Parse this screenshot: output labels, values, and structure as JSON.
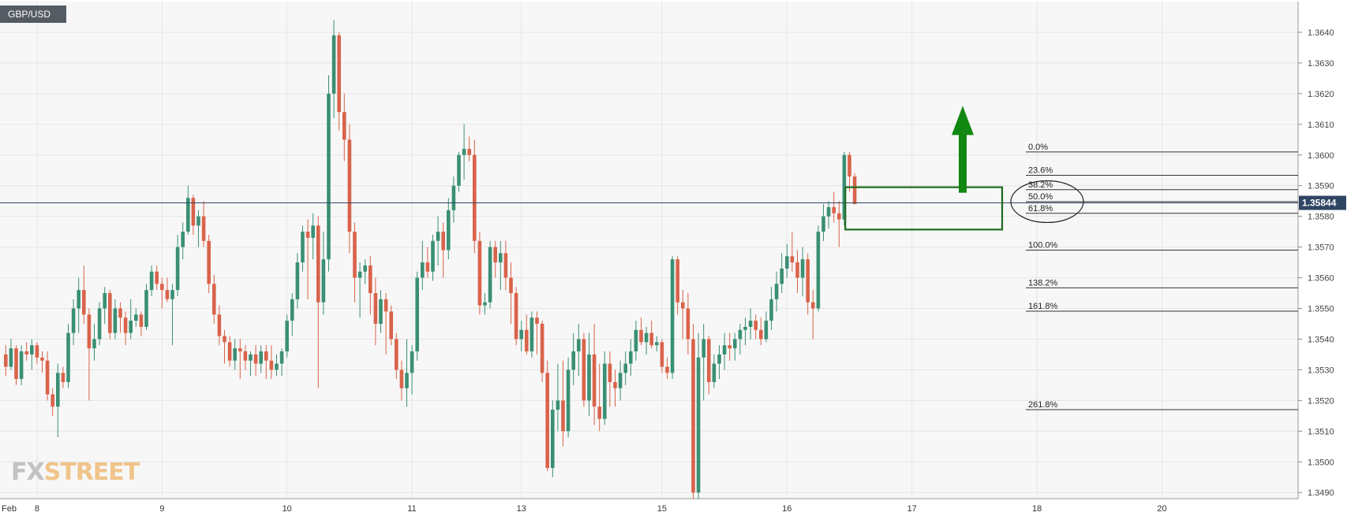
{
  "ticker": "GBP/USD",
  "brand": {
    "part1": "FX",
    "part2": "STREET"
  },
  "colors": {
    "up": "#3a8f74",
    "down": "#d9634a",
    "grid": "#e6e6e6",
    "fib": "#333333",
    "price_line": "#2f4563",
    "highlight": "#1f6b1f",
    "arrow": "#118811",
    "bg": "#f7f7f7"
  },
  "chart_data": {
    "type": "candlestick",
    "symbol": "GBP/USD",
    "y_ticks": [
      "1.3640",
      "1.3630",
      "1.3620",
      "1.3610",
      "1.3600",
      "1.3590",
      "1.3580",
      "1.3570",
      "1.3560",
      "1.3550",
      "1.3540",
      "1.3530",
      "1.3520",
      "1.3510",
      "1.3500",
      "1.3490"
    ],
    "ylim": [
      1.3488,
      1.365
    ],
    "x_ticks": [
      {
        "label": "Feb",
        "bar": 0
      },
      {
        "label": "8",
        "bar": 6
      },
      {
        "label": "9",
        "bar": 30
      },
      {
        "label": "10",
        "bar": 54
      },
      {
        "label": "11",
        "bar": 78
      },
      {
        "label": "13",
        "bar": 99
      },
      {
        "label": "15",
        "bar": 126
      },
      {
        "label": "16",
        "bar": 150
      },
      {
        "label": "17",
        "bar": 174
      },
      {
        "label": "18",
        "bar": 198
      },
      {
        "label": "20",
        "bar": 222
      }
    ],
    "current_price": {
      "label": "1.35844",
      "value": 1.35844
    },
    "fibonacci": [
      {
        "label": "0.0%",
        "value": 1.3601
      },
      {
        "label": "23.6%",
        "value": 1.35934
      },
      {
        "label": "38.2%",
        "value": 1.35887
      },
      {
        "label": "50.0%",
        "value": 1.35848
      },
      {
        "label": "61.8%",
        "value": 1.3581
      },
      {
        "label": "100.0%",
        "value": 1.3569
      },
      {
        "label": "138.2%",
        "value": 1.35567
      },
      {
        "label": "161.8%",
        "value": 1.35491
      },
      {
        "label": "261.8%",
        "value": 1.3517
      }
    ],
    "candles": [
      [
        1.3535,
        1.3538,
        1.3528,
        1.3531
      ],
      [
        1.3531,
        1.354,
        1.353,
        1.3537
      ],
      [
        1.3537,
        1.3538,
        1.3525,
        1.3527
      ],
      [
        1.3527,
        1.3538,
        1.3525,
        1.3536
      ],
      [
        1.3536,
        1.3539,
        1.3533,
        1.3535
      ],
      [
        1.3535,
        1.354,
        1.353,
        1.3538
      ],
      [
        1.3538,
        1.3539,
        1.3532,
        1.3534
      ],
      [
        1.3534,
        1.3536,
        1.3529,
        1.3533
      ],
      [
        1.3533,
        1.3536,
        1.352,
        1.3522
      ],
      [
        1.3522,
        1.3524,
        1.3515,
        1.3518
      ],
      [
        1.3518,
        1.3532,
        1.3508,
        1.3529
      ],
      [
        1.3529,
        1.3531,
        1.3524,
        1.3526
      ],
      [
        1.3526,
        1.3545,
        1.3524,
        1.3542
      ],
      [
        1.3542,
        1.3553,
        1.3538,
        1.355
      ],
      [
        1.355,
        1.356,
        1.3542,
        1.3556
      ],
      [
        1.3556,
        1.3564,
        1.3545,
        1.3548
      ],
      [
        1.3548,
        1.355,
        1.352,
        1.3537
      ],
      [
        1.3537,
        1.3545,
        1.3533,
        1.354
      ],
      [
        1.354,
        1.3552,
        1.3538,
        1.355
      ],
      [
        1.355,
        1.3557,
        1.3545,
        1.3555
      ],
      [
        1.3555,
        1.3556,
        1.354,
        1.3542
      ],
      [
        1.3542,
        1.3553,
        1.354,
        1.355
      ],
      [
        1.355,
        1.3552,
        1.3542,
        1.3547
      ],
      [
        1.3547,
        1.3549,
        1.3538,
        1.3542
      ],
      [
        1.3542,
        1.3553,
        1.354,
        1.3546
      ],
      [
        1.3546,
        1.355,
        1.3544,
        1.3548
      ],
      [
        1.3548,
        1.3549,
        1.3541,
        1.3544
      ],
      [
        1.3544,
        1.3558,
        1.3543,
        1.3556
      ],
      [
        1.3556,
        1.3564,
        1.3554,
        1.3562
      ],
      [
        1.3562,
        1.3564,
        1.3556,
        1.3558
      ],
      [
        1.3558,
        1.356,
        1.355,
        1.3556
      ],
      [
        1.3556,
        1.356,
        1.3552,
        1.3553
      ],
      [
        1.3553,
        1.3558,
        1.3538,
        1.3556
      ],
      [
        1.3556,
        1.3574,
        1.3554,
        1.357
      ],
      [
        1.357,
        1.3578,
        1.3566,
        1.3575
      ],
      [
        1.3575,
        1.359,
        1.3574,
        1.3586
      ],
      [
        1.3586,
        1.3587,
        1.3574,
        1.3577
      ],
      [
        1.3577,
        1.3582,
        1.357,
        1.358
      ],
      [
        1.358,
        1.3585,
        1.357,
        1.3572
      ],
      [
        1.3572,
        1.3574,
        1.3555,
        1.3558
      ],
      [
        1.3558,
        1.3561,
        1.3545,
        1.3548
      ],
      [
        1.3548,
        1.3551,
        1.3538,
        1.3541
      ],
      [
        1.3541,
        1.3543,
        1.3532,
        1.3539
      ],
      [
        1.3539,
        1.3541,
        1.3531,
        1.3533
      ],
      [
        1.3533,
        1.354,
        1.353,
        1.3537
      ],
      [
        1.3537,
        1.354,
        1.3527,
        1.3536
      ],
      [
        1.3536,
        1.3538,
        1.353,
        1.3533
      ],
      [
        1.3533,
        1.3536,
        1.3528,
        1.3535
      ],
      [
        1.3535,
        1.3538,
        1.3528,
        1.3532
      ],
      [
        1.3532,
        1.3538,
        1.3529,
        1.3536
      ],
      [
        1.3536,
        1.3538,
        1.3527,
        1.3533
      ],
      [
        1.3533,
        1.3538,
        1.3527,
        1.353
      ],
      [
        1.353,
        1.3535,
        1.3528,
        1.3532
      ],
      [
        1.3532,
        1.3537,
        1.3528,
        1.3536
      ],
      [
        1.3536,
        1.3548,
        1.3534,
        1.3546
      ],
      [
        1.3546,
        1.3555,
        1.3541,
        1.3553
      ],
      [
        1.3553,
        1.3568,
        1.355,
        1.3565
      ],
      [
        1.3565,
        1.3577,
        1.3562,
        1.3575
      ],
      [
        1.3575,
        1.3579,
        1.3553,
        1.3573
      ],
      [
        1.3573,
        1.3581,
        1.3566,
        1.3577
      ],
      [
        1.3577,
        1.358,
        1.3524,
        1.3552
      ],
      [
        1.3552,
        1.3575,
        1.3548,
        1.3566
      ],
      [
        1.3566,
        1.3626,
        1.3562,
        1.362
      ],
      [
        1.362,
        1.3644,
        1.3612,
        1.3639
      ],
      [
        1.3639,
        1.364,
        1.3608,
        1.3614
      ],
      [
        1.3614,
        1.362,
        1.3598,
        1.3605
      ],
      [
        1.3605,
        1.361,
        1.3568,
        1.3575
      ],
      [
        1.3575,
        1.3578,
        1.3552,
        1.356
      ],
      [
        1.356,
        1.3565,
        1.3547,
        1.3562
      ],
      [
        1.3562,
        1.3566,
        1.3558,
        1.3564
      ],
      [
        1.3564,
        1.3567,
        1.3548,
        1.3555
      ],
      [
        1.3555,
        1.356,
        1.3538,
        1.3545
      ],
      [
        1.3545,
        1.3556,
        1.3542,
        1.3553
      ],
      [
        1.3553,
        1.3555,
        1.3535,
        1.3549
      ],
      [
        1.3549,
        1.3551,
        1.3538,
        1.354
      ],
      [
        1.354,
        1.3542,
        1.3527,
        1.353
      ],
      [
        1.353,
        1.3533,
        1.352,
        1.3524
      ],
      [
        1.3524,
        1.354,
        1.3518,
        1.3529
      ],
      [
        1.3529,
        1.3538,
        1.3522,
        1.3536
      ],
      [
        1.3536,
        1.3562,
        1.3533,
        1.356
      ],
      [
        1.356,
        1.3572,
        1.3556,
        1.3565
      ],
      [
        1.3565,
        1.357,
        1.356,
        1.3562
      ],
      [
        1.3562,
        1.3574,
        1.3559,
        1.3572
      ],
      [
        1.3572,
        1.358,
        1.3564,
        1.3575
      ],
      [
        1.3575,
        1.3578,
        1.356,
        1.3569
      ],
      [
        1.3569,
        1.3586,
        1.3566,
        1.3582
      ],
      [
        1.3582,
        1.3593,
        1.3578,
        1.359
      ],
      [
        1.359,
        1.3601,
        1.3588,
        1.36
      ],
      [
        1.36,
        1.361,
        1.3592,
        1.3602
      ],
      [
        1.3602,
        1.3606,
        1.3598,
        1.36
      ],
      [
        1.36,
        1.3605,
        1.3568,
        1.3572
      ],
      [
        1.3572,
        1.3575,
        1.3548,
        1.3551
      ],
      [
        1.3551,
        1.3555,
        1.3548,
        1.3552
      ],
      [
        1.3552,
        1.3572,
        1.355,
        1.357
      ],
      [
        1.357,
        1.3572,
        1.356,
        1.3565
      ],
      [
        1.3565,
        1.3572,
        1.3556,
        1.3568
      ],
      [
        1.3568,
        1.3572,
        1.3556,
        1.356
      ],
      [
        1.356,
        1.3565,
        1.3545,
        1.3555
      ],
      [
        1.3555,
        1.3557,
        1.3538,
        1.354
      ],
      [
        1.354,
        1.3546,
        1.3536,
        1.3543
      ],
      [
        1.3543,
        1.3548,
        1.3535,
        1.3536
      ],
      [
        1.3536,
        1.3549,
        1.3534,
        1.3547
      ],
      [
        1.3547,
        1.3549,
        1.3535,
        1.3545
      ],
      [
        1.3545,
        1.3546,
        1.3526,
        1.3529
      ],
      [
        1.3529,
        1.3533,
        1.3497,
        1.3498
      ],
      [
        1.3498,
        1.352,
        1.3495,
        1.3517
      ],
      [
        1.3517,
        1.3532,
        1.351,
        1.352
      ],
      [
        1.352,
        1.3533,
        1.3505,
        1.351
      ],
      [
        1.351,
        1.3534,
        1.3508,
        1.353
      ],
      [
        1.353,
        1.3542,
        1.3525,
        1.3536
      ],
      [
        1.3536,
        1.3545,
        1.3528,
        1.354
      ],
      [
        1.354,
        1.3542,
        1.3518,
        1.352
      ],
      [
        1.352,
        1.3542,
        1.3515,
        1.3535
      ],
      [
        1.3535,
        1.3545,
        1.3512,
        1.3518
      ],
      [
        1.3518,
        1.3532,
        1.351,
        1.3514
      ],
      [
        1.3514,
        1.3536,
        1.3512,
        1.3532
      ],
      [
        1.3532,
        1.3536,
        1.3518,
        1.3526
      ],
      [
        1.3526,
        1.353,
        1.3518,
        1.3524
      ],
      [
        1.3524,
        1.3533,
        1.352,
        1.3529
      ],
      [
        1.3529,
        1.3536,
        1.3525,
        1.3532
      ],
      [
        1.3532,
        1.354,
        1.3528,
        1.3536
      ],
      [
        1.3536,
        1.3546,
        1.3533,
        1.3543
      ],
      [
        1.3543,
        1.3547,
        1.3538,
        1.3539
      ],
      [
        1.3539,
        1.3544,
        1.3535,
        1.3542
      ],
      [
        1.3542,
        1.3546,
        1.3537,
        1.3538
      ],
      [
        1.3538,
        1.3541,
        1.3536,
        1.3539
      ],
      [
        1.3539,
        1.354,
        1.3529,
        1.3531
      ],
      [
        1.3531,
        1.3534,
        1.3527,
        1.3529
      ],
      [
        1.3529,
        1.3567,
        1.3527,
        1.3566
      ],
      [
        1.3566,
        1.3567,
        1.3548,
        1.3552
      ],
      [
        1.3552,
        1.3556,
        1.354,
        1.355
      ],
      [
        1.355,
        1.3555,
        1.3535,
        1.354
      ],
      [
        1.354,
        1.3545,
        1.3488,
        1.349
      ],
      [
        1.349,
        1.3542,
        1.3488,
        1.3534
      ],
      [
        1.3534,
        1.3545,
        1.352,
        1.354
      ],
      [
        1.354,
        1.3541,
        1.3522,
        1.3526
      ],
      [
        1.3526,
        1.3535,
        1.3524,
        1.3532
      ],
      [
        1.3532,
        1.3538,
        1.3527,
        1.3535
      ],
      [
        1.3535,
        1.3542,
        1.353,
        1.3538
      ],
      [
        1.3538,
        1.3542,
        1.3533,
        1.3537
      ],
      [
        1.3537,
        1.3542,
        1.3533,
        1.354
      ],
      [
        1.354,
        1.3545,
        1.3535,
        1.3543
      ],
      [
        1.3543,
        1.3547,
        1.3538,
        1.3544
      ],
      [
        1.3544,
        1.355,
        1.354,
        1.3546
      ],
      [
        1.3546,
        1.3548,
        1.354,
        1.3543
      ],
      [
        1.3543,
        1.3547,
        1.3538,
        1.354
      ],
      [
        1.354,
        1.3549,
        1.3539,
        1.3546
      ],
      [
        1.3546,
        1.3557,
        1.3543,
        1.3553
      ],
      [
        1.3553,
        1.3562,
        1.3549,
        1.3558
      ],
      [
        1.3558,
        1.3568,
        1.3555,
        1.3563
      ],
      [
        1.3563,
        1.3571,
        1.356,
        1.3567
      ],
      [
        1.3567,
        1.3575,
        1.3562,
        1.3565
      ],
      [
        1.3565,
        1.3569,
        1.3555,
        1.356
      ],
      [
        1.356,
        1.357,
        1.3554,
        1.3566
      ],
      [
        1.3566,
        1.3568,
        1.3548,
        1.3552
      ],
      [
        1.3552,
        1.3556,
        1.354,
        1.355
      ],
      [
        1.355,
        1.3577,
        1.3549,
        1.3575
      ],
      [
        1.3575,
        1.3584,
        1.3572,
        1.358
      ],
      [
        1.358,
        1.3585,
        1.3576,
        1.3583
      ],
      [
        1.3583,
        1.3588,
        1.3578,
        1.3581
      ],
      [
        1.3581,
        1.3585,
        1.357,
        1.3579
      ],
      [
        1.3579,
        1.3601,
        1.3577,
        1.36
      ],
      [
        1.36,
        1.3601,
        1.3588,
        1.3593
      ],
      [
        1.3593,
        1.3594,
        1.3584,
        1.3584
      ]
    ]
  }
}
